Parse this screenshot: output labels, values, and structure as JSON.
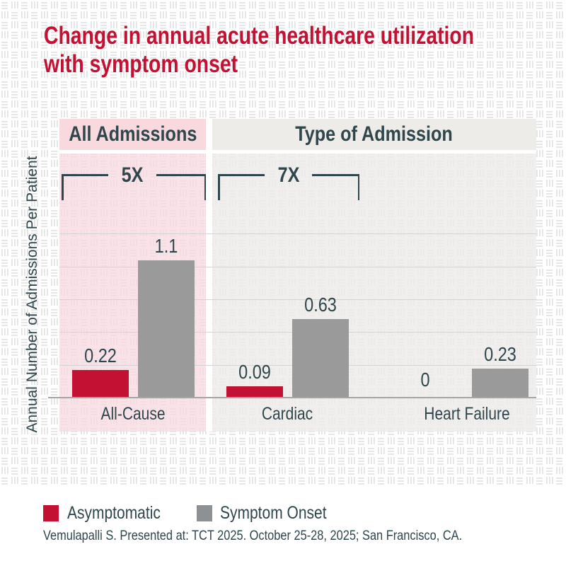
{
  "title": {
    "lines": [
      "Change in annual acute healthcare utilization",
      "with symptom onset"
    ]
  },
  "y_axis_label": "Annual Number of Admissions Per Patient",
  "chart_data": {
    "type": "bar",
    "categories": [
      "All-Cause",
      "Cardiac",
      "Heart Failure"
    ],
    "series": [
      {
        "name": "Asymptomatic",
        "values": [
          0.22,
          0.09,
          0
        ],
        "display": [
          "0.22",
          "0.09",
          "0"
        ]
      },
      {
        "name": "Symptom Onset",
        "values": [
          1.1,
          0.63,
          0.23
        ],
        "display": [
          "1.1",
          "0.63",
          "0.23"
        ]
      }
    ],
    "group_headers": [
      {
        "label": "All Admissions",
        "categories": [
          "All-Cause"
        ]
      },
      {
        "label": "Type of Admission",
        "categories": [
          "Cardiac",
          "Heart Failure"
        ]
      }
    ],
    "annotations": [
      {
        "label": "5X",
        "over": "All-Cause"
      },
      {
        "label": "7X",
        "over": "Cardiac"
      }
    ],
    "title": "Change in annual acute healthcare utilization with symptom onset",
    "xlabel": "",
    "ylabel": "Annual Number of Admissions Per Patient",
    "ylim": [
      0,
      1.32
    ],
    "grid": true,
    "legend_position": "bottom-left"
  },
  "legend": {
    "items": [
      {
        "label": "Asymptomatic",
        "color": "#c21132"
      },
      {
        "label": "Symptom Onset",
        "color": "#8e9193"
      }
    ]
  },
  "footer": "Vemulapalli S. Presented at: TCT 2025. October 25-28, 2025; San Francisco, CA.",
  "colors": {
    "red": "#c21132",
    "bar_gray": "#9a9a9a",
    "slate": "#2e464c",
    "pink_band": "#f7d9de",
    "pink_panel": "rgba(247,217,224,0.75)",
    "gray_band": "#edece9",
    "gray_panel": "rgba(236,235,232,0.8)",
    "texture": "#e4e4e4"
  }
}
